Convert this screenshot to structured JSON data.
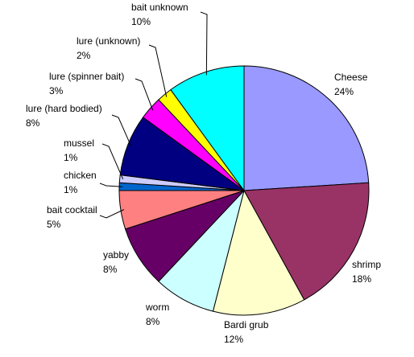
{
  "chart_data": {
    "type": "pie",
    "categories": [
      "Cheese",
      "shrimp",
      "Bardi grub",
      "worm",
      "yabby",
      "bait cocktail",
      "chicken",
      "mussel",
      "lure (hard bodied)",
      "lure (spinner bait)",
      "lure (unknown)",
      "bait unknown"
    ],
    "values": [
      24,
      18,
      12,
      8,
      8,
      5,
      1,
      1,
      8,
      3,
      2,
      10
    ],
    "value_labels": [
      "24%",
      "18%",
      "12%",
      "8%",
      "8%",
      "5%",
      "1%",
      "1%",
      "8%",
      "3%",
      "2%",
      "10%"
    ],
    "colors": [
      "#9999ff",
      "#993366",
      "#ffffcc",
      "#ccffff",
      "#660066",
      "#ff8080",
      "#0066cc",
      "#ccccff",
      "#000080",
      "#ff00ff",
      "#ffff00",
      "#00ffff"
    ]
  }
}
